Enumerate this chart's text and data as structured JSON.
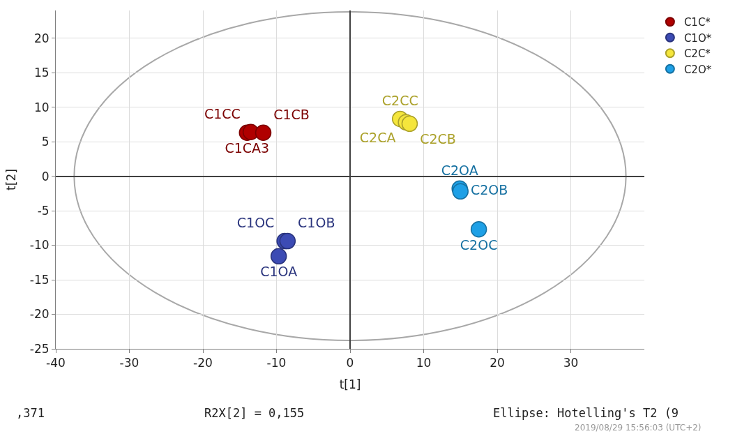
{
  "chart_data": {
    "type": "scatter",
    "xlabel": "t[1]",
    "ylabel": "t[2]",
    "xlim": [
      -40,
      40
    ],
    "ylim": [
      -25,
      24
    ],
    "xticks": [
      -40,
      -30,
      -20,
      -10,
      0,
      10,
      20,
      30
    ],
    "yticks": [
      -25,
      -20,
      -15,
      -10,
      -5,
      0,
      5,
      10,
      15,
      20
    ],
    "grid": true,
    "legend": "top right",
    "marker": "circle",
    "series": [
      {
        "name": "C1C*",
        "color": "#b00000",
        "x": [
          -14,
          -13.5,
          -11.8
        ],
        "values": [
          6.3,
          6.4,
          6.3
        ],
        "value_labels": [
          "C1CA3",
          "C1CC",
          "C1CB"
        ]
      },
      {
        "name": "C1O*",
        "color": "#3c4bb4",
        "x": [
          -9.7,
          -8.9,
          -8.5
        ],
        "values": [
          -11.6,
          -9.4,
          -9.4
        ],
        "value_labels": [
          "C1OA",
          "C1OC",
          "C1OB"
        ]
      },
      {
        "name": "C2C*",
        "color": "#f5e63c",
        "x": [
          6.8,
          7.6,
          8.1
        ],
        "values": [
          8.3,
          7.8,
          7.6
        ],
        "value_labels": [
          "C2CC",
          "C2CA",
          "C2CB"
        ]
      },
      {
        "name": "C2O*",
        "color": "#1ea0e6",
        "x": [
          14.9,
          15.0,
          17.5
        ],
        "values": [
          -1.8,
          -2.2,
          -7.7
        ],
        "value_labels": [
          "C2OA",
          "C2OB",
          "C2OC"
        ]
      }
    ],
    "annotations": [
      ",371",
      "R2X[2] = 0,155",
      "Ellipse: Hotelling's T2 (9",
      "2019/08/29 15:56:03 (UTC+2)"
    ]
  }
}
